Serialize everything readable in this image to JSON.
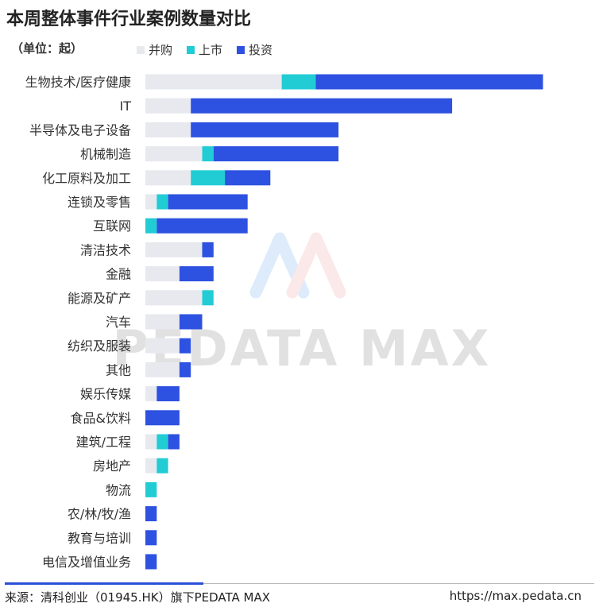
{
  "title": "本周整体事件行业案例数量对比",
  "unit_label": "（单位：起）",
  "legend": [
    {
      "name": "并购",
      "color": "#e7e9ee"
    },
    {
      "name": "上市",
      "color": "#22ccd4"
    },
    {
      "name": "投资",
      "color": "#2d51e0"
    }
  ],
  "watermark": "PEDATA MAX",
  "footer": {
    "source": "来源：清科创业（01945.HK）旗下PEDATA MAX",
    "url": "https://max.pedata.cn"
  },
  "chart_data": {
    "type": "bar",
    "orientation": "horizontal",
    "stacked": true,
    "categories": [
      "生物技术/医疗健康",
      "IT",
      "半导体及电子设备",
      "机械制造",
      "化工原料及加工",
      "连锁及零售",
      "互联网",
      "清洁技术",
      "金融",
      "能源及矿产",
      "汽车",
      "纺织及服装",
      "其他",
      "娱乐传媒",
      "食品&饮料",
      "建筑/工程",
      "房地产",
      "物流",
      "农/林/牧/渔",
      "教育与培训",
      "电信及增值业务"
    ],
    "series": [
      {
        "name": "并购",
        "color": "#e7e9ee",
        "values": [
          12,
          4,
          4,
          5,
          4,
          1,
          0,
          5,
          3,
          5,
          3,
          3,
          3,
          1,
          0,
          1,
          1,
          0,
          0,
          0,
          0
        ]
      },
      {
        "name": "上市",
        "color": "#22ccd4",
        "values": [
          3,
          0,
          0,
          1,
          3,
          1,
          1,
          0,
          0,
          1,
          0,
          0,
          0,
          0,
          0,
          1,
          1,
          1,
          0,
          0,
          0
        ]
      },
      {
        "name": "投资",
        "color": "#2d51e0",
        "values": [
          20,
          23,
          13,
          11,
          4,
          7,
          8,
          1,
          3,
          0,
          2,
          1,
          1,
          2,
          3,
          1,
          0,
          0,
          1,
          1,
          1
        ]
      }
    ],
    "grid": false,
    "legend_position": "top-left"
  }
}
